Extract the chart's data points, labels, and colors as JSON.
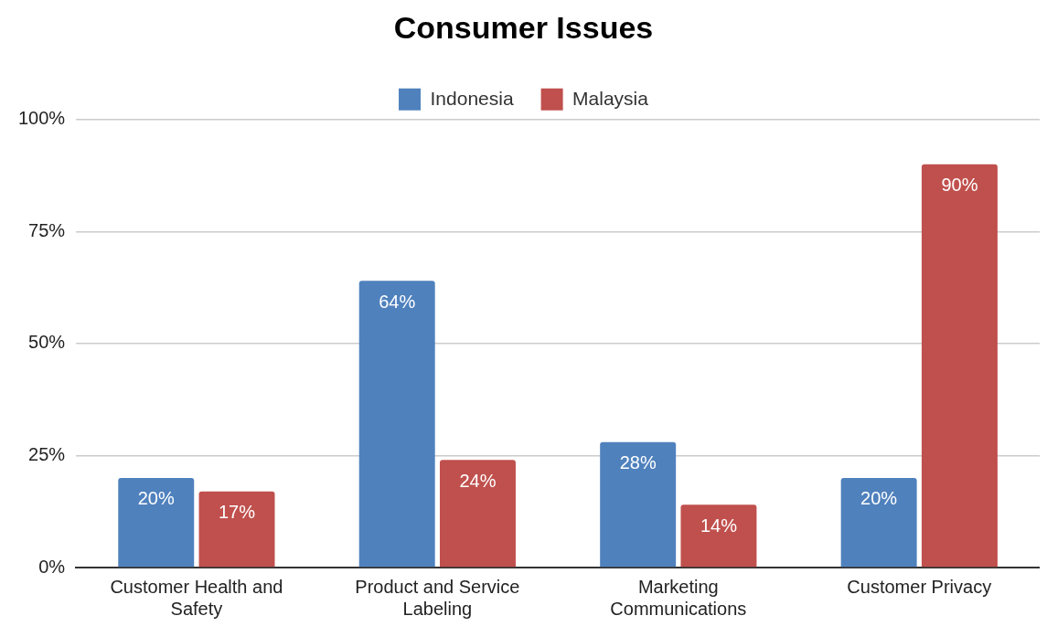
{
  "chart_data": {
    "type": "bar",
    "title": "Consumer Issues",
    "categories": [
      "Customer Health and Safety",
      "Product and Service Labeling",
      "Marketing Communications",
      "Customer Privacy"
    ],
    "series": [
      {
        "name": "Indonesia",
        "color": "#4f81bd",
        "values": [
          20,
          64,
          28,
          20
        ],
        "value_labels": [
          "20%",
          "64%",
          "28%",
          "20%"
        ]
      },
      {
        "name": "Malaysia",
        "color": "#c0504d",
        "values": [
          17,
          24,
          14,
          90
        ],
        "value_labels": [
          "17%",
          "24%",
          "14%",
          "90%"
        ]
      }
    ],
    "ylim": [
      0,
      100
    ],
    "yticks": [
      {
        "value": 0,
        "label": "0%"
      },
      {
        "value": 25,
        "label": "25%"
      },
      {
        "value": 50,
        "label": "50%"
      },
      {
        "value": 75,
        "label": "75%"
      },
      {
        "value": 100,
        "label": "100%"
      }
    ],
    "grid": "y",
    "legend": "top"
  }
}
